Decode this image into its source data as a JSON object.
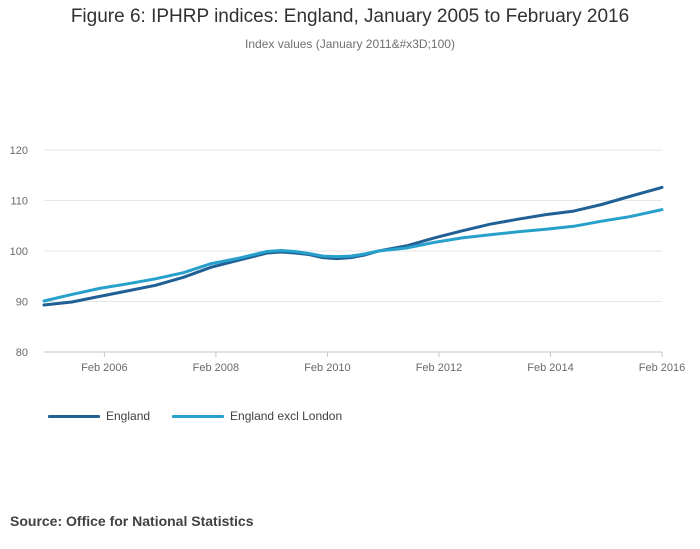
{
  "chart_data": {
    "type": "line",
    "title": "Figure 6: IPHRP indices: England, January 2005 to February 2016",
    "subtitle": "Index values (January 2011&#x3D;100)",
    "xlabel": "",
    "ylabel": "",
    "ylim": [
      80,
      120
    ],
    "yticks": [
      80,
      90,
      100,
      110,
      120
    ],
    "xlim": [
      2005.0,
      2016.083
    ],
    "xticks": [
      {
        "value": 2006.083,
        "label": "Feb 2006"
      },
      {
        "value": 2008.083,
        "label": "Feb 2008"
      },
      {
        "value": 2010.083,
        "label": "Feb 2010"
      },
      {
        "value": 2012.083,
        "label": "Feb 2012"
      },
      {
        "value": 2014.083,
        "label": "Feb 2014"
      },
      {
        "value": 2016.083,
        "label": "Feb 2016"
      }
    ],
    "grid": true,
    "legend_position": "bottom-left",
    "series": [
      {
        "name": "England",
        "color": "#206095",
        "points": [
          [
            2005.0,
            89.3
          ],
          [
            2005.5,
            89.9
          ],
          [
            2006.0,
            91.0
          ],
          [
            2006.5,
            92.1
          ],
          [
            2007.0,
            93.2
          ],
          [
            2007.5,
            94.8
          ],
          [
            2008.0,
            96.8
          ],
          [
            2008.5,
            98.2
          ],
          [
            2009.0,
            99.6
          ],
          [
            2009.25,
            99.8
          ],
          [
            2009.5,
            99.6
          ],
          [
            2009.75,
            99.3
          ],
          [
            2010.0,
            98.7
          ],
          [
            2010.25,
            98.5
          ],
          [
            2010.5,
            98.7
          ],
          [
            2010.75,
            99.2
          ],
          [
            2011.0,
            100.0
          ],
          [
            2011.5,
            101.0
          ],
          [
            2012.0,
            102.6
          ],
          [
            2012.5,
            104.0
          ],
          [
            2013.0,
            105.3
          ],
          [
            2013.5,
            106.3
          ],
          [
            2014.0,
            107.2
          ],
          [
            2014.5,
            107.9
          ],
          [
            2015.0,
            109.2
          ],
          [
            2015.5,
            110.8
          ],
          [
            2016.083,
            112.6
          ]
        ]
      },
      {
        "name": "England excl London",
        "color": "#27a0cc",
        "points": [
          [
            2005.0,
            90.1
          ],
          [
            2005.5,
            91.4
          ],
          [
            2006.0,
            92.6
          ],
          [
            2006.5,
            93.5
          ],
          [
            2007.0,
            94.5
          ],
          [
            2007.5,
            95.7
          ],
          [
            2008.0,
            97.5
          ],
          [
            2008.5,
            98.6
          ],
          [
            2009.0,
            99.9
          ],
          [
            2009.25,
            100.1
          ],
          [
            2009.5,
            99.9
          ],
          [
            2009.75,
            99.5
          ],
          [
            2010.0,
            99.0
          ],
          [
            2010.25,
            98.9
          ],
          [
            2010.5,
            99.0
          ],
          [
            2010.75,
            99.4
          ],
          [
            2011.0,
            100.0
          ],
          [
            2011.5,
            100.6
          ],
          [
            2012.0,
            101.7
          ],
          [
            2012.5,
            102.6
          ],
          [
            2013.0,
            103.2
          ],
          [
            2013.5,
            103.8
          ],
          [
            2014.0,
            104.3
          ],
          [
            2014.5,
            104.9
          ],
          [
            2015.0,
            105.9
          ],
          [
            2015.5,
            106.8
          ],
          [
            2016.083,
            108.2
          ]
        ]
      }
    ]
  },
  "source": "Source: Office for National Statistics"
}
